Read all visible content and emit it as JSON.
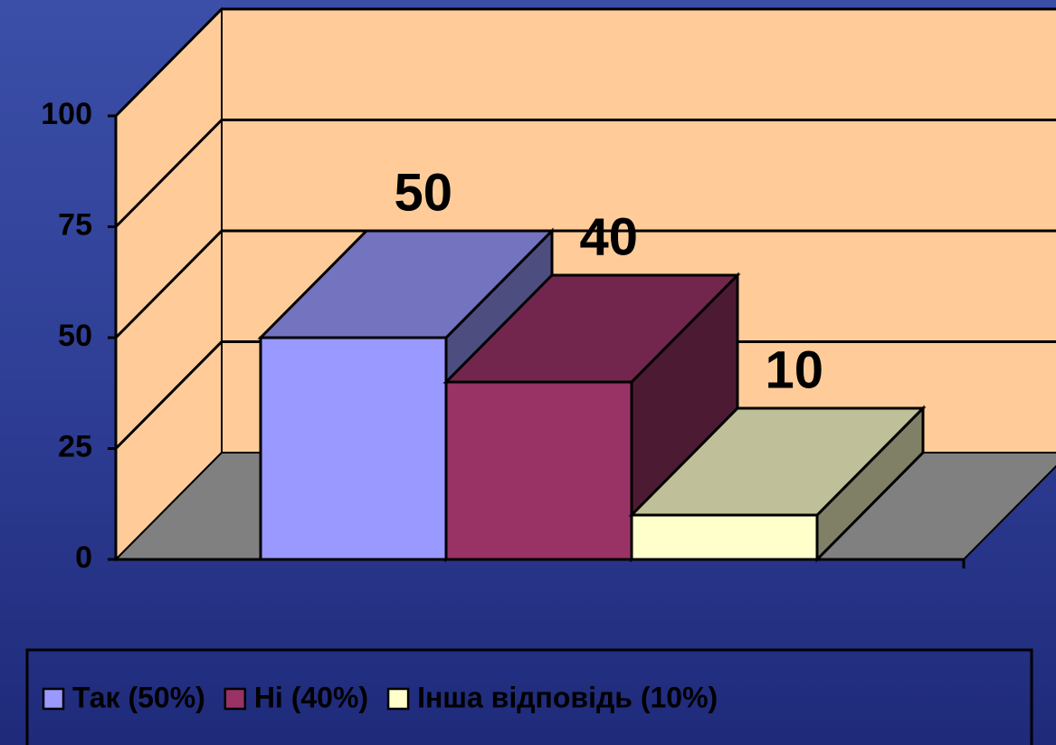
{
  "chart_data": {
    "type": "bar3d",
    "categories": [
      null
    ],
    "series": [
      {
        "name": "Так (50%)",
        "color": "#9999ff",
        "values": [
          50
        ]
      },
      {
        "name": "Ні (40%)",
        "color": "#993366",
        "values": [
          40
        ]
      },
      {
        "name": "Інша відповідь (10%)",
        "color": "#ffffcc",
        "values": [
          10
        ]
      }
    ],
    "ylim": [
      0,
      100
    ],
    "yticks": [
      0,
      25,
      50,
      75,
      100
    ],
    "grid": true,
    "legend": "bottom"
  }
}
